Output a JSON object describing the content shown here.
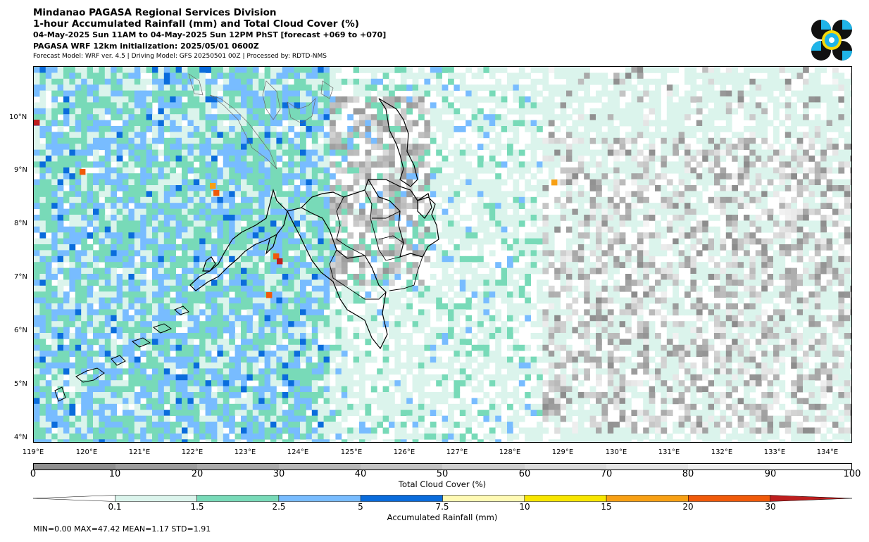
{
  "header": {
    "title": "Mindanao PAGASA Regional Services Division",
    "subtitle": "1-hour Accumulated Rainfall (mm) and Total Cloud Cover (%)",
    "period": "04-May-2025 Sun 11AM to 04-May-2025 Sun 12PM PhST [forecast +069 to +070]",
    "init": "PAGASA WRF 12km initialization: 2025/05/01 0600Z",
    "model_info": "Forecast Model: WRF ver. 4.5 | Driving Model: GFS 20250501 00Z | Processed by: RDTD-NMS"
  },
  "map": {
    "lat_labels": [
      "10°N",
      "9°N",
      "8°N",
      "7°N",
      "6°N",
      "5°N",
      "4°N"
    ],
    "lon_labels": [
      "119°E",
      "120°E",
      "121°E",
      "122°E",
      "123°E",
      "124°E",
      "125°E",
      "126°E",
      "127°E",
      "128°E",
      "129°E",
      "130°E",
      "131°E",
      "132°E",
      "133°E",
      "134°E"
    ]
  },
  "cloud_colorbar": {
    "title": "Total Cloud Cover (%)",
    "ticks": [
      "0",
      "10",
      "20",
      "30",
      "40",
      "50",
      "60",
      "70",
      "80",
      "90",
      "100"
    ],
    "colors": [
      "#8f8f8f",
      "#9d9d9d",
      "#aaaaaa",
      "#b7b7b7",
      "#c3c3c3",
      "#cfcfcf",
      "#dadada",
      "#e4e4e4",
      "#eeeeee",
      "#f7f7f7"
    ]
  },
  "rain_colorbar": {
    "title": "Accumulated Rainfall (mm)",
    "ticks": [
      "0.1",
      "1.5",
      "2.5",
      "5",
      "7.5",
      "10",
      "15",
      "20",
      "30"
    ],
    "colors": [
      "#ffffff",
      "#dbf4ec",
      "#78dab8",
      "#78bcff",
      "#0a6cdc",
      "#fffab4",
      "#f8e600",
      "#f8a014",
      "#f05a0a",
      "#be1e1e"
    ]
  },
  "stats": "MIN=0.00   MAX=47.42   MEAN=1.17   STD=1.91"
}
